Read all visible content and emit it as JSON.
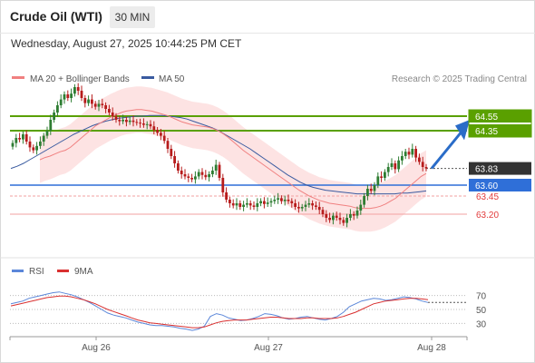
{
  "header": {
    "title": "Crude Oil (WTI)",
    "timeframe": "30 MIN"
  },
  "datetime": "Wednesday, August 27, 2025 10:44:25 PM CET",
  "legend": {
    "ma20_label": "MA 20 + Bollinger Bands",
    "ma50_label": "MA 50",
    "credit": "Research © 2025 Trading Central"
  },
  "rsi_legend": {
    "rsi_label": "RSI",
    "ma_label": "9MA"
  },
  "colors": {
    "ma20": "#f08080",
    "ma50": "#3a5ba0",
    "band": "#fde3e3",
    "green": "#5aa000",
    "blue_line": "#2f6fd8",
    "red_line": "#f2a0a0",
    "arrow": "#2a6cc8",
    "up": "#2e7d32",
    "down": "#b71c1c",
    "rsi": "#5b87d9",
    "rsi_ma": "#d93030"
  },
  "chart_data": [
    {
      "type": "candlestick",
      "ylim": [
        62.9,
        64.9
      ],
      "x_ticks": [
        "Aug 26",
        "Aug 27",
        "Aug 28"
      ],
      "levels": [
        {
          "value": 64.55,
          "label": "64.55",
          "style": "resistance"
        },
        {
          "value": 64.35,
          "label": "64.35",
          "style": "resistance"
        },
        {
          "value": 63.83,
          "label": "63.83",
          "style": "last"
        },
        {
          "value": 63.6,
          "label": "63.60",
          "style": "pivot"
        },
        {
          "value": 63.45,
          "label": "63.45",
          "style": "support-dashed"
        },
        {
          "value": 63.2,
          "label": "63.20",
          "style": "support"
        }
      ],
      "closes": [
        64.18,
        64.25,
        64.23,
        64.3,
        64.2,
        64.12,
        64.08,
        64.14,
        64.2,
        64.28,
        64.35,
        64.5,
        64.6,
        64.7,
        64.78,
        64.85,
        64.8,
        64.86,
        64.95,
        64.9,
        64.8,
        64.73,
        64.78,
        64.72,
        64.68,
        64.72,
        64.7,
        64.65,
        64.6,
        64.55,
        64.5,
        64.48,
        64.5,
        64.47,
        64.49,
        64.47,
        64.46,
        64.45,
        64.43,
        64.44,
        64.41,
        64.36,
        64.32,
        64.28,
        64.21,
        64.1,
        64.0,
        63.9,
        63.8,
        63.75,
        63.72,
        63.7,
        63.68,
        63.72,
        63.78,
        63.74,
        63.71,
        63.75,
        63.8,
        63.88,
        63.7,
        63.5,
        63.4,
        63.35,
        63.32,
        63.35,
        63.3,
        63.33,
        63.35,
        63.32,
        63.3,
        63.35,
        63.38,
        63.34,
        63.36,
        63.38,
        63.4,
        63.42,
        63.38,
        63.4,
        63.38,
        63.35,
        63.3,
        63.28,
        63.3,
        63.33,
        63.35,
        63.32,
        63.3,
        63.26,
        63.2,
        63.15,
        63.12,
        63.18,
        63.15,
        63.12,
        63.08,
        63.15,
        63.2,
        63.18,
        63.25,
        63.33,
        63.45,
        63.55,
        63.52,
        63.6,
        63.72,
        63.7,
        63.78,
        63.85,
        63.9,
        63.82,
        63.94,
        64.0,
        64.06,
        64.02,
        64.1,
        63.98,
        63.92,
        63.85,
        63.83
      ],
      "ma20": [
        63.95,
        63.98,
        64.0,
        64.03,
        64.06,
        64.08,
        64.12,
        64.18,
        64.24,
        64.3,
        64.36,
        64.42,
        64.46,
        64.5,
        64.54,
        64.57,
        64.6,
        64.62,
        64.63,
        64.64,
        64.64,
        64.63,
        64.62,
        64.6,
        64.58,
        64.56,
        64.53,
        64.5,
        64.47,
        64.45,
        64.43,
        64.42,
        64.41,
        64.4,
        64.38,
        64.35,
        64.31,
        64.26,
        64.2,
        64.14,
        64.08,
        64.03,
        63.98,
        63.93,
        63.88,
        63.83,
        63.78,
        63.73,
        63.68,
        63.63,
        63.58,
        63.53,
        63.49,
        63.45,
        63.42,
        63.39,
        63.37,
        63.35,
        63.34,
        63.33,
        63.32,
        63.31,
        63.29,
        63.28,
        63.28,
        63.28,
        63.29,
        63.31,
        63.34,
        63.38,
        63.42,
        63.48,
        63.54,
        63.6,
        63.66,
        63.72,
        63.76
      ],
      "ma20_x0": 44,
      "ma50": [
        63.83,
        63.86,
        63.9,
        63.95,
        64.0,
        64.05,
        64.1,
        64.15,
        64.2,
        64.25,
        64.3,
        64.34,
        64.38,
        64.42,
        64.45,
        64.48,
        64.5,
        64.52,
        64.53,
        64.54,
        64.55,
        64.55,
        64.56,
        64.56,
        64.56,
        64.55,
        64.54,
        64.53,
        64.51,
        64.48,
        64.45,
        64.42,
        64.39,
        64.35,
        64.3,
        64.25,
        64.2,
        64.15,
        64.1,
        64.04,
        63.98,
        63.92,
        63.86,
        63.8,
        63.74,
        63.69,
        63.64,
        63.6,
        63.57,
        63.55,
        63.53,
        63.52,
        63.51,
        63.5,
        63.49,
        63.48,
        63.48,
        63.48,
        63.48,
        63.48,
        63.48,
        63.48,
        63.49,
        63.49,
        63.5,
        63.51,
        63.52
      ],
      "ma50_x0": 12
    },
    {
      "type": "line",
      "ylim": [
        15,
        85
      ],
      "y_ticks": [
        70,
        50,
        30
      ],
      "series": [
        {
          "name": "RSI",
          "values": [
            58,
            60,
            62,
            66,
            68,
            70,
            72,
            74,
            75,
            73,
            71,
            68,
            64,
            60,
            55,
            50,
            45,
            42,
            40,
            38,
            35,
            32,
            30,
            28,
            27,
            27,
            26,
            25,
            23,
            22,
            20,
            22,
            26,
            40,
            44,
            42,
            38,
            36,
            34,
            35,
            37,
            40,
            44,
            43,
            41,
            38,
            36,
            37,
            39,
            40,
            38,
            36,
            35,
            37,
            40,
            46,
            54,
            58,
            62,
            64,
            66,
            65,
            63,
            64,
            66,
            68,
            67,
            65,
            62,
            60
          ]
        },
        {
          "name": "9MA",
          "values": [
            55,
            57,
            59,
            61,
            63,
            65,
            67,
            68,
            69,
            69,
            68,
            66,
            64,
            61,
            58,
            54,
            50,
            47,
            44,
            41,
            38,
            35,
            33,
            31,
            30,
            29,
            28,
            27,
            26,
            25,
            24,
            24,
            25,
            28,
            31,
            33,
            34,
            35,
            35,
            35,
            36,
            37,
            38,
            39,
            39,
            38,
            37,
            37,
            37,
            38,
            38,
            37,
            37,
            37,
            38,
            40,
            43,
            46,
            50,
            54,
            58,
            60,
            62,
            63,
            64,
            65,
            66,
            66,
            65,
            64
          ]
        }
      ]
    }
  ]
}
